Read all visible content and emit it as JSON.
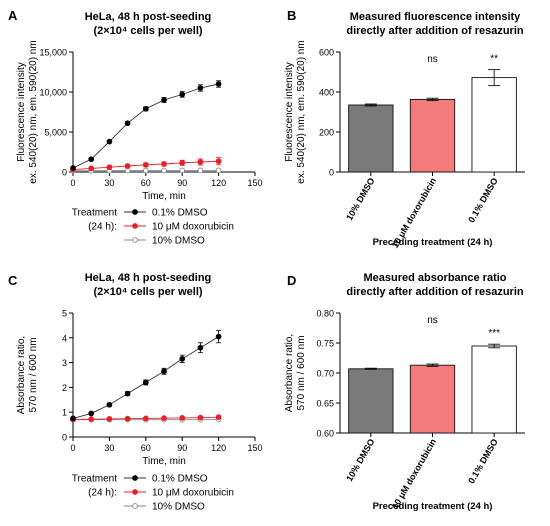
{
  "chart_data": [
    {
      "panel": "A",
      "type": "line",
      "title": [
        "HeLa, 48 h post-seeding",
        "(2×10⁴ cells per well)"
      ],
      "xlabel": "Time, min",
      "ylabel": [
        "Fluorescence intensity",
        "ex. 540(20) nm, em. 590(20) nm"
      ],
      "xlim": [
        0,
        150
      ],
      "ylim": [
        0,
        15000
      ],
      "xticks": [
        0,
        30,
        60,
        90,
        120,
        150
      ],
      "yticks": [
        0,
        5000,
        10000,
        15000
      ],
      "ytick_labels": [
        "0",
        "5,000",
        "10,000",
        "15,000"
      ],
      "x": [
        0,
        15,
        30,
        45,
        60,
        75,
        90,
        105,
        120
      ],
      "series": [
        {
          "name": "0.1% DMSO",
          "values": [
            500,
            1600,
            3800,
            6100,
            7900,
            9000,
            9700,
            10500,
            11000
          ],
          "errors": [
            60,
            100,
            150,
            200,
            250,
            300,
            350,
            400,
            400
          ],
          "marker": "filled-black"
        },
        {
          "name": "10 μM doxorubicin",
          "values": [
            300,
            450,
            600,
            750,
            900,
            1000,
            1150,
            1250,
            1350
          ],
          "errors": [
            50,
            80,
            120,
            160,
            220,
            260,
            320,
            380,
            450
          ],
          "marker": "filled-red"
        },
        {
          "name": "10% DMSO",
          "values": [
            150,
            160,
            170,
            180,
            185,
            190,
            195,
            200,
            210
          ],
          "errors": [
            30,
            30,
            30,
            30,
            30,
            30,
            30,
            30,
            30
          ],
          "marker": "open-grey"
        }
      ],
      "legend_title": [
        "Treatment",
        "(24 h):"
      ],
      "legend_position": "below"
    },
    {
      "panel": "B",
      "type": "bar",
      "title": [
        "Measured fluorescence intensity",
        "directly after addition of resazurin"
      ],
      "xlabel": "Preceding treatment (24 h)",
      "ylabel": [
        "Fluorescence intensity",
        "ex. 540(20) nm, em. 590(20) nm"
      ],
      "ylim": [
        0,
        600
      ],
      "yticks": [
        0,
        200,
        400,
        600
      ],
      "categories": [
        "10% DMSO",
        "10 μM doxorubicin",
        "0.1% DMSO"
      ],
      "values": [
        335,
        363,
        472
      ],
      "errors": [
        5,
        6,
        40
      ],
      "significance": [
        "",
        "ns",
        "**"
      ],
      "colors": [
        "#7a7a7a",
        "#f47b7b",
        "#ffffff"
      ]
    },
    {
      "panel": "C",
      "type": "line",
      "title": [
        "HeLa, 48 h post-seeding",
        "(2×10⁴ cells per well)"
      ],
      "xlabel": "Time, min",
      "ylabel": [
        "Absorbance ratio,",
        "570 nm / 600 nm"
      ],
      "xlim": [
        0,
        150
      ],
      "ylim": [
        0,
        5
      ],
      "xticks": [
        0,
        30,
        60,
        90,
        120,
        150
      ],
      "yticks": [
        0,
        1,
        2,
        3,
        4,
        5
      ],
      "ytick_labels": [
        "0",
        "1",
        "2",
        "3",
        "4",
        "5"
      ],
      "x": [
        0,
        15,
        30,
        45,
        60,
        75,
        90,
        105,
        120
      ],
      "series": [
        {
          "name": "0.1% DMSO",
          "values": [
            0.75,
            0.95,
            1.3,
            1.75,
            2.2,
            2.65,
            3.15,
            3.6,
            4.05
          ],
          "errors": [
            0.02,
            0.04,
            0.06,
            0.08,
            0.1,
            0.12,
            0.15,
            0.2,
            0.25
          ],
          "marker": "filled-black"
        },
        {
          "name": "10 μM doxorubicin",
          "values": [
            0.71,
            0.72,
            0.73,
            0.74,
            0.75,
            0.76,
            0.77,
            0.78,
            0.8
          ],
          "errors": [
            0.01,
            0.01,
            0.01,
            0.01,
            0.01,
            0.01,
            0.01,
            0.01,
            0.02
          ],
          "marker": "filled-red"
        },
        {
          "name": "10% DMSO",
          "values": [
            0.7,
            0.7,
            0.7,
            0.7,
            0.7,
            0.7,
            0.7,
            0.7,
            0.71
          ],
          "errors": [
            0.01,
            0.01,
            0.01,
            0.01,
            0.01,
            0.01,
            0.01,
            0.01,
            0.01
          ],
          "marker": "open-grey"
        }
      ],
      "legend_title": [
        "Treatment",
        "(24 h):"
      ],
      "legend_position": "below"
    },
    {
      "panel": "D",
      "type": "bar",
      "title": [
        "Measured absorbance ratio",
        "directly after addition of resazurin"
      ],
      "xlabel": "Preceding treatment (24 h)",
      "ylabel": [
        "Absorbance ratio,",
        "570 nm / 600 nm"
      ],
      "ylim": [
        0.6,
        0.8
      ],
      "yticks": [
        0.6,
        0.65,
        0.7,
        0.75,
        0.8
      ],
      "ytick_labels": [
        "0.60",
        "0.65",
        "0.70",
        "0.75",
        "0.80"
      ],
      "categories": [
        "10% DMSO",
        "10 μM doxorubicin",
        "0.1% DMSO"
      ],
      "values": [
        0.707,
        0.713,
        0.745
      ],
      "errors": [
        0.001,
        0.002,
        0.003
      ],
      "significance": [
        "",
        "ns",
        "***"
      ],
      "colors": [
        "#7a7a7a",
        "#f47b7b",
        "#ffffff"
      ]
    }
  ],
  "colors": {
    "black_series": "#000000",
    "red_series": "#e8202a",
    "grey_series": "#8a8a8a",
    "line_black": "#333333"
  }
}
